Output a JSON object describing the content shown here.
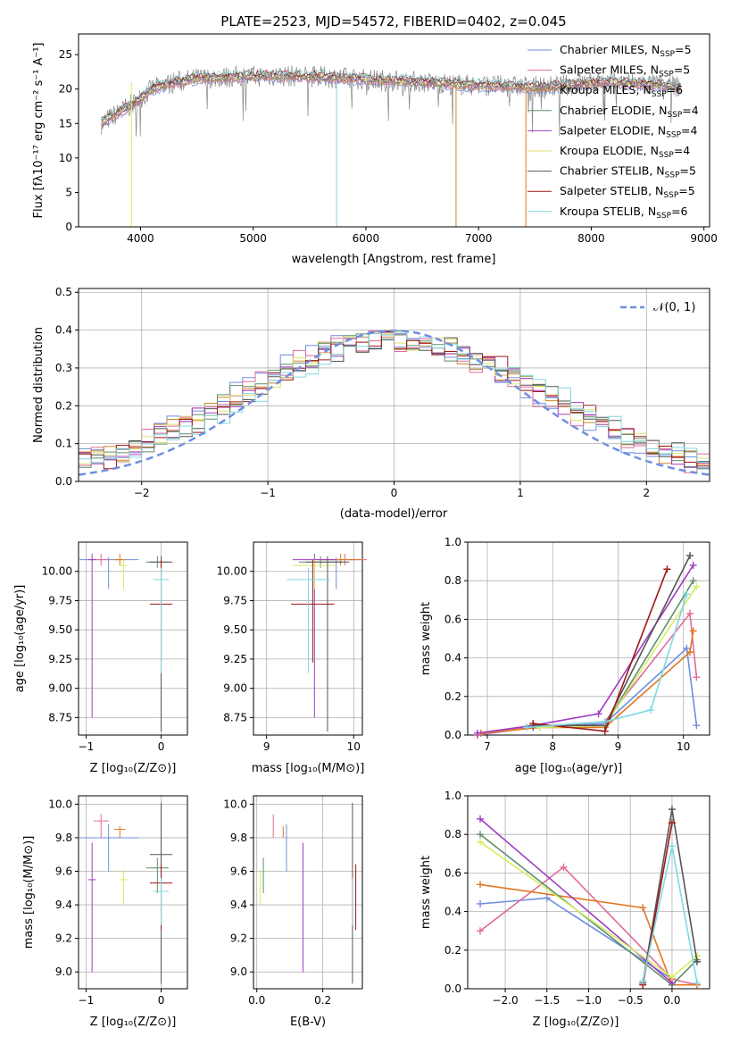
{
  "chart_data": [
    {
      "type": "line",
      "title": "PLATE=2523, MJD=54572, FIBERID=0402, z=0.045",
      "xlabel": "wavelength [Angstrom, rest frame]",
      "ylabel": "Flux [fλ10⁻¹⁷ erg cm⁻² s⁻¹ A⁻¹]",
      "xlim": [
        3450,
        9050
      ],
      "ylim": [
        0,
        28
      ],
      "xticks": [
        4000,
        5000,
        6000,
        7000,
        8000,
        9000
      ],
      "yticks": [
        0,
        5,
        10,
        15,
        20,
        25
      ],
      "legend_position": "right",
      "legend": [
        {
          "label": "Chabrier MILES, N",
          "sub": "SSP",
          "suffix": "=5",
          "color": "#6f8ee0"
        },
        {
          "label": "Salpeter MILES, N",
          "sub": "SSP",
          "suffix": "=5",
          "color": "#e06a9a"
        },
        {
          "label": "Kroupa MILES, N",
          "sub": "SSP",
          "suffix": "=6",
          "color": "#c98a2a"
        },
        {
          "label": "Chabrier ELODIE, N",
          "sub": "SSP",
          "suffix": "=4",
          "color": "#5e8e6a"
        },
        {
          "label": "Salpeter ELODIE, N",
          "sub": "SSP",
          "suffix": "=4",
          "color": "#a03cc0"
        },
        {
          "label": "Kroupa ELODIE, N",
          "sub": "SSP",
          "suffix": "=4",
          "color": "#e0e070"
        },
        {
          "label": "Chabrier STELIB, N",
          "sub": "SSP",
          "suffix": "=5",
          "color": "#555555"
        },
        {
          "label": "Salpeter STELIB, N",
          "sub": "SSP",
          "suffix": "=5",
          "color": "#a01818"
        },
        {
          "label": "Kroupa STELIB, N",
          "sub": "SSP",
          "suffix": "=6",
          "color": "#80d8e0"
        }
      ],
      "spectrum": {
        "x": [
          3650,
          3750,
          3850,
          3950,
          4100,
          4300,
          4500,
          4700,
          4900,
          5100,
          5300,
          5500,
          5700,
          5900,
          6100,
          6300,
          6500,
          6700,
          6900,
          7100,
          7300,
          7500,
          7700,
          7900,
          8100,
          8300,
          8500,
          8700,
          8800
        ],
        "y": [
          15,
          16,
          17,
          18,
          20,
          21,
          21.5,
          21.7,
          21.8,
          21.9,
          21.9,
          21.8,
          21.7,
          21.5,
          21.3,
          21.2,
          21,
          20.8,
          20.6,
          20.5,
          20.4,
          20.3,
          20.4,
          20.8,
          21,
          20.9,
          20.7,
          20.5,
          20.3
        ]
      }
    },
    {
      "type": "line",
      "xlabel": "(data-model)/error",
      "ylabel": "Normed distribution",
      "xlim": [
        -2.5,
        2.5
      ],
      "ylim": [
        0,
        0.51
      ],
      "xticks": [
        -2,
        -1,
        0,
        1,
        2
      ],
      "yticks": [
        0.0,
        0.1,
        0.2,
        0.3,
        0.4,
        0.5
      ],
      "legend_position": "top-right",
      "gaussian_label": "𝒩(0, 1)",
      "gaussian_color": "#6f8ee0",
      "bin_width": 0.1
    },
    {
      "type": "scatter",
      "xlabel": "Z [log₁₀(Z/Z⊙)]",
      "ylabel": "age  [log₁₀(age/yr)]",
      "xlim": [
        -1.1,
        0.35
      ],
      "ylim": [
        8.6,
        10.25
      ],
      "xticks": [
        -1,
        0
      ],
      "yticks": [
        8.75,
        9.0,
        9.25,
        9.5,
        9.75,
        10.0
      ]
    },
    {
      "type": "scatter",
      "xlabel": "mass [log₁₀(M/M⊙)]",
      "xlim": [
        8.85,
        10.1
      ],
      "ylim": [
        8.6,
        10.25
      ],
      "xticks": [
        9,
        10
      ],
      "yticks": [
        8.75,
        9.0,
        9.25,
        9.5,
        9.75,
        10.0
      ]
    },
    {
      "type": "line",
      "xlabel": "age  [log₁₀(age/yr)]",
      "ylabel": "mass weight",
      "xlim": [
        6.7,
        10.4
      ],
      "ylim": [
        0,
        1
      ],
      "xticks": [
        7,
        8,
        9,
        10
      ],
      "yticks": [
        0.0,
        0.2,
        0.4,
        0.6,
        0.8,
        1.0
      ]
    },
    {
      "type": "scatter",
      "xlabel": "Z [log₁₀(Z/Z⊙)]",
      "ylabel": "mass [log₁₀(M/M⊙)]",
      "xlim": [
        -1.1,
        0.35
      ],
      "ylim": [
        8.9,
        10.05
      ],
      "xticks": [
        -1,
        0
      ],
      "yticks": [
        9.0,
        9.2,
        9.4,
        9.6,
        9.8,
        10.0
      ]
    },
    {
      "type": "scatter",
      "xlabel": "E(B-V)",
      "xlim": [
        -0.01,
        0.32
      ],
      "ylim": [
        8.9,
        10.05
      ],
      "xticks": [
        0.0,
        0.2
      ],
      "yticks": [
        9.0,
        9.2,
        9.4,
        9.6,
        9.8,
        10.0
      ]
    },
    {
      "type": "line",
      "xlabel": "Z [log₁₀(Z/Z⊙)]",
      "ylabel": "mass weight",
      "xlim": [
        -2.45,
        0.45
      ],
      "ylim": [
        0,
        1
      ],
      "xticks": [
        -2.0,
        -1.5,
        -1.0,
        -0.5,
        0.0
      ],
      "yticks": [
        0.0,
        0.2,
        0.4,
        0.6,
        0.8,
        1.0
      ]
    }
  ],
  "models": [
    {
      "color": "#6f8ee0",
      "Z": -0.7,
      "Zerr": 0.8,
      "age": 10.1,
      "age_err_lo": 0.25,
      "age_err_hi": 0.02,
      "mass": 9.8,
      "mass_err": 0.2,
      "ebv": 0.09,
      "ebv_err_lo": 0.2,
      "ebv_err_hi": 0.3,
      "agew": [
        [
          6.85,
          0.0
        ],
        [
          7.7,
          0.04
        ],
        [
          8.8,
          0.06
        ],
        [
          10.05,
          0.45
        ],
        [
          10.2,
          0.05
        ]
      ],
      "zw": [
        [
          -2.3,
          0.44
        ],
        [
          -1.5,
          0.47
        ],
        [
          0.0,
          0.05
        ]
      ]
    },
    {
      "color": "#e06a9a",
      "Z": -0.8,
      "Zerr": 0.2,
      "age": 10.1,
      "age_err_lo": 0.05,
      "age_err_hi": 0.05,
      "mass": 9.9,
      "mass_err": 0.1,
      "ebv": 0.05,
      "ebv_err_lo": 0.15,
      "ebv_err_hi": 0.1,
      "agew": [
        [
          6.85,
          0.0
        ],
        [
          7.6,
          0.04
        ],
        [
          8.8,
          0.07
        ],
        [
          10.1,
          0.63
        ],
        [
          10.2,
          0.3
        ]
      ],
      "zw": [
        [
          -2.3,
          0.3
        ],
        [
          -1.3,
          0.63
        ],
        [
          0.0,
          0.05
        ],
        [
          0.3,
          0.02
        ]
      ]
    },
    {
      "color": "#e07820",
      "Z": -0.55,
      "Zerr": 0.15,
      "age": 10.1,
      "age_err_lo": 0.05,
      "age_err_hi": 0.05,
      "mass": 9.85,
      "mass_err": 0.05,
      "ebv": 0.08,
      "ebv_err_lo": 0.1,
      "ebv_err_hi": 0.05,
      "agew": [
        [
          6.9,
          0.01
        ],
        [
          7.8,
          0.04
        ],
        [
          8.8,
          0.04
        ],
        [
          10.1,
          0.43
        ],
        [
          10.15,
          0.54
        ]
      ],
      "zw": [
        [
          -2.3,
          0.54
        ],
        [
          -0.35,
          0.42
        ],
        [
          0.0,
          0.02
        ],
        [
          0.3,
          0.02
        ]
      ]
    },
    {
      "color": "#5e8e6a",
      "Z": -0.05,
      "Zerr": 0.3,
      "age": 10.08,
      "age_err_lo": 0.05,
      "age_err_hi": 0.05,
      "mass": 9.62,
      "mass_err": 0.15,
      "ebv": 0.02,
      "ebv_err_lo": 0.15,
      "ebv_err_hi": 0.05,
      "agew": [
        [
          7.7,
          0.04
        ],
        [
          8.8,
          0.05
        ],
        [
          10.15,
          0.8
        ]
      ],
      "zw": [
        [
          -2.3,
          0.8
        ],
        [
          0.0,
          0.02
        ],
        [
          0.3,
          0.15
        ]
      ]
    },
    {
      "color": "#a03cc0",
      "Z": -0.92,
      "Zerr": 0.1,
      "age": 10.1,
      "age_err_lo": 1.35,
      "age_err_hi": 0.05,
      "mass": 9.55,
      "mass_err": 0.55,
      "ebv": 0.14,
      "ebv_err_lo": 0.3,
      "ebv_err_hi": 0.01,
      "agew": [
        [
          6.85,
          0.01
        ],
        [
          7.7,
          0.05
        ],
        [
          8.7,
          0.11
        ],
        [
          10.15,
          0.88
        ]
      ],
      "zw": [
        [
          -2.3,
          0.88
        ],
        [
          0.0,
          0.03
        ]
      ]
    },
    {
      "color": "#d6ee62",
      "Z": -0.5,
      "Zerr": 0.1,
      "age": 10.05,
      "age_err_lo": 0.2,
      "age_err_hi": 0.05,
      "mass": 9.55,
      "mass_err": 0.15,
      "ebv": 0.01,
      "ebv_err_lo": 0.15,
      "ebv_err_hi": 0.05,
      "agew": [
        [
          7.8,
          0.04
        ],
        [
          8.8,
          0.05
        ],
        [
          10.2,
          0.77
        ]
      ],
      "zw": [
        [
          -2.3,
          0.76
        ],
        [
          0.0,
          0.06
        ],
        [
          0.3,
          0.17
        ]
      ]
    },
    {
      "color": "#555555",
      "Z": 0.0,
      "Zerr": 0.3,
      "age": 10.08,
      "age_err_lo": 1.45,
      "age_err_hi": 0.05,
      "mass": 9.7,
      "mass_err": 0.77,
      "ebv": 0.29,
      "ebv_err_lo": 0.8,
      "ebv_err_hi": 0.05,
      "agew": [
        [
          7.7,
          0.05
        ],
        [
          8.8,
          0.05
        ],
        [
          10.1,
          0.93
        ]
      ],
      "zw": [
        [
          -0.35,
          0.03
        ],
        [
          0.0,
          0.93
        ],
        [
          0.3,
          0.14
        ]
      ]
    },
    {
      "color": "#a01818",
      "Z": 0.0,
      "Zerr": 0.3,
      "age": 9.72,
      "age_err_lo": 0.5,
      "age_err_hi": 0.38,
      "mass": 9.53,
      "mass_err": 0.28,
      "ebv": 0.3,
      "ebv_err_lo": 0.2,
      "ebv_err_hi": 0.3,
      "agew": [
        [
          7.7,
          0.06
        ],
        [
          8.8,
          0.02
        ],
        [
          9.75,
          0.86
        ]
      ],
      "zw": [
        [
          -0.35,
          0.02
        ],
        [
          0.0,
          0.86
        ]
      ]
    },
    {
      "color": "#80d8e0",
      "Z": 0.0,
      "Zerr": 0.2,
      "age": 9.93,
      "age_err_lo": 0.8,
      "age_err_hi": 0.1,
      "mass": 9.48,
      "mass_err": 0.2,
      "ebv": 0.29,
      "ebv_err_lo": 0.5,
      "ebv_err_hi": 0.05,
      "agew": [
        [
          7.6,
          0.04
        ],
        [
          8.8,
          0.07
        ],
        [
          9.5,
          0.13
        ],
        [
          10.05,
          0.73
        ]
      ],
      "zw": [
        [
          -0.35,
          0.04
        ],
        [
          0.0,
          0.74
        ],
        [
          0.3,
          0.03
        ]
      ]
    }
  ]
}
